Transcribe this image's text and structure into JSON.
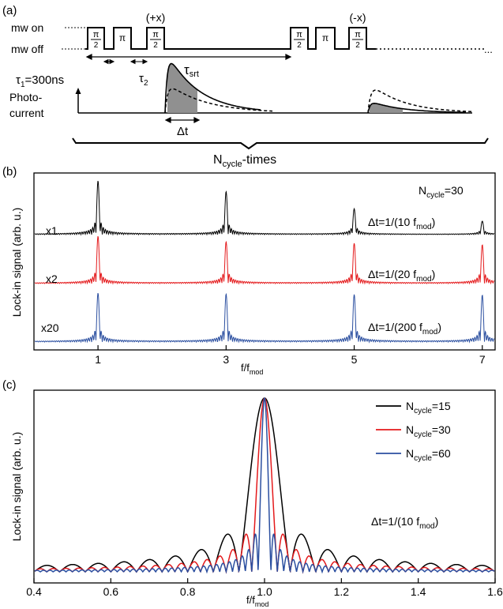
{
  "panel_a": {
    "label": "(a)",
    "mw_on": "mw on",
    "mw_off": "mw off",
    "pulse_half": "π",
    "pulse_half_den": "2",
    "pulse_pi": "π",
    "plus_x": "(+x)",
    "minus_x": "(-x)",
    "tau1": "τ",
    "tau1_sub": "1",
    "tau1_val": "=300ns",
    "tau2": "τ",
    "tau2_sub": "2",
    "tau_srt": "τ",
    "tau_srt_sub": "srt",
    "photo_1": "Photo-",
    "photo_2": "current",
    "delta_t": "Δt",
    "ellipsis": "...",
    "ncycle_main": "N",
    "ncycle_sub": "cycle",
    "ncycle_rest": "-times"
  },
  "panel_b": {
    "label": "(b)",
    "ylabel": "Lock-in signal (arb. u.)",
    "xlabel_main": "f/f",
    "xlabel_sub": "mod",
    "ticks": [
      "1",
      "3",
      "5",
      "7"
    ],
    "ncycle_main": "N",
    "ncycle_sub": "cycle",
    "ncycle_val": "=30",
    "traces": [
      {
        "scale": "x1",
        "dt_pre": "Δt=1/(10 f",
        "dt_sub": "mod",
        "dt_post": ")",
        "color": "#000000"
      },
      {
        "scale": "x2",
        "dt_pre": "Δt=1/(20 f",
        "dt_sub": "mod",
        "dt_post": ")",
        "color": "#e41a1c"
      },
      {
        "scale": "x20",
        "dt_pre": "Δt=1/(200 f",
        "dt_sub": "mod",
        "dt_post": ")",
        "color": "#2b4fa0"
      }
    ]
  },
  "panel_c": {
    "label": "(c)",
    "ylabel": "Lock-in signal (arb. u.)",
    "xlabel_main": "f/f",
    "xlabel_sub": "mod",
    "ticks": [
      "0.4",
      "0.6",
      "0.8",
      "1.0",
      "1.2",
      "1.4",
      "1.6"
    ],
    "legend": [
      {
        "pre": "N",
        "sub": "cycle",
        "post": "=15",
        "color": "#000000"
      },
      {
        "pre": "N",
        "sub": "cycle",
        "post": "=30",
        "color": "#e41a1c"
      },
      {
        "pre": "N",
        "sub": "cycle",
        "post": "=60",
        "color": "#2b4fa0"
      }
    ],
    "dt_pre": "Δt=1/(10 f",
    "dt_sub": "mod",
    "dt_post": ")"
  },
  "chart_data": [
    {
      "type": "line",
      "panel": "b",
      "x_range": [
        0,
        7.2
      ],
      "x_ticks": [
        1,
        3,
        5,
        7
      ],
      "peaks_at": [
        1,
        3,
        5,
        7
      ],
      "series": [
        {
          "name": "Δt=1/(10 fmod)",
          "peak_heights": [
            1.0,
            0.8,
            0.48,
            0.25
          ]
        },
        {
          "name": "Δt=1/(20 fmod)",
          "peak_heights": [
            1.0,
            0.88,
            0.85,
            0.82
          ]
        },
        {
          "name": "Δt=1/(200 fmod)",
          "peak_heights": [
            1.0,
            0.98,
            0.97,
            0.96
          ]
        }
      ]
    },
    {
      "type": "line",
      "panel": "c",
      "x_range": [
        0.4,
        1.6
      ],
      "x_ticks": [
        0.4,
        0.6,
        0.8,
        1.0,
        1.2,
        1.4,
        1.6
      ],
      "series": [
        {
          "name": "Ncycle=15",
          "N": 15
        },
        {
          "name": "Ncycle=30",
          "N": 30
        },
        {
          "name": "Ncycle=60",
          "N": 60
        }
      ]
    }
  ]
}
